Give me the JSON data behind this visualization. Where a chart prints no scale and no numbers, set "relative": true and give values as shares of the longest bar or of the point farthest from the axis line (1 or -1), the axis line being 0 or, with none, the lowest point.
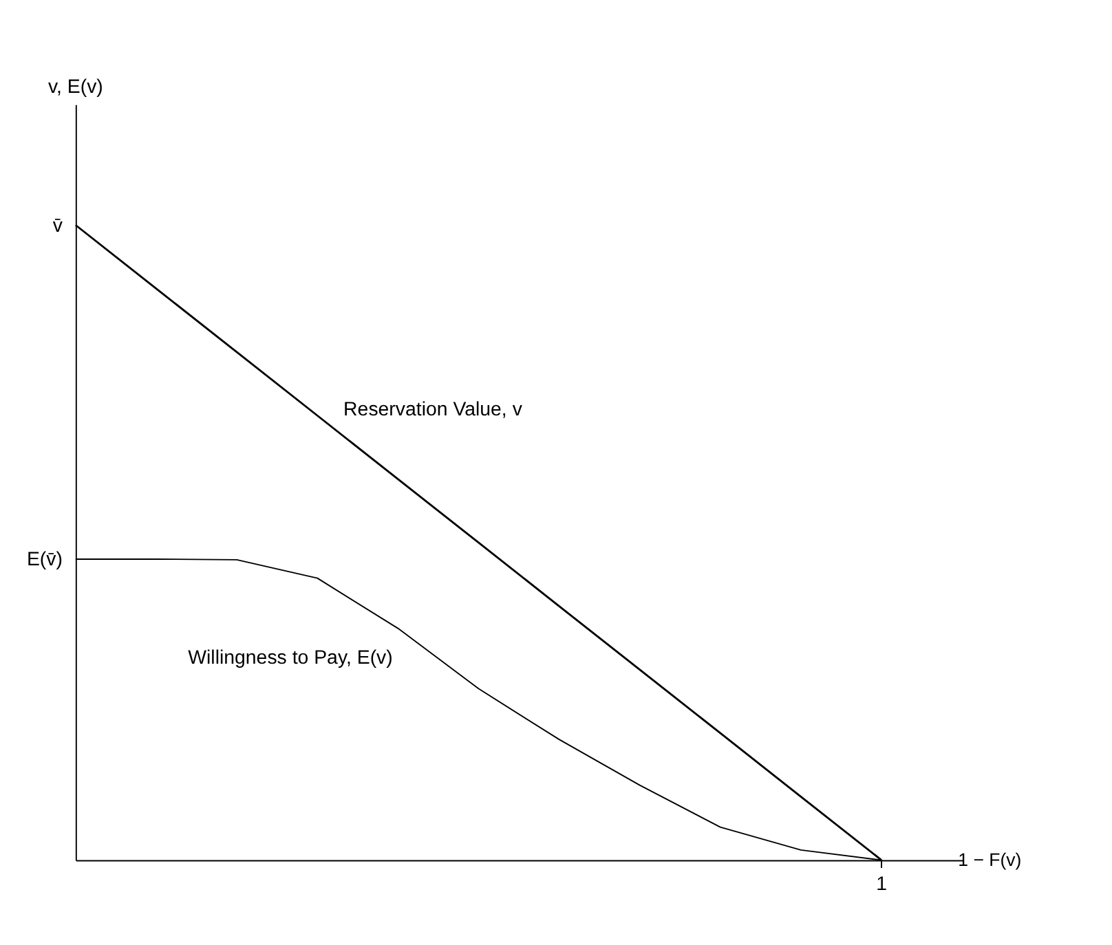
{
  "chart_data": {
    "type": "line",
    "relative": true,
    "xlabel": "1 − F(v)",
    "marker": "none",
    "line_style": "solid",
    "categories": [
      null,
      null,
      null,
      null,
      null,
      null,
      null,
      null,
      null,
      null,
      null
    ],
    "series": [
      {
        "name": "Reservation Value, v",
        "color": "#000000",
        "values": [
          1,
          0.9,
          0.8,
          0.7,
          0.6,
          0.5,
          0.4,
          0.3,
          0.2,
          0.1,
          0
        ]
      },
      {
        "name": "Willingness to Pay, E(v)",
        "color": "#000000",
        "values": [
          0.474,
          0.474,
          0.473,
          0.444,
          0.365,
          0.27,
          0.19,
          0.118,
          0.052,
          0.016,
          0
        ]
      }
    ],
    "annotations": [
      "v, E(v)",
      "v̄",
      "E(v̄)",
      "1"
    ]
  }
}
